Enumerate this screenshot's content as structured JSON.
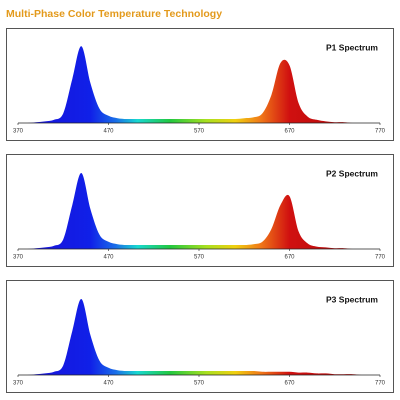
{
  "title": "Multi-Phase Color Temperature Technology",
  "chart_data": [
    {
      "type": "area",
      "title": "P1 Spectrum",
      "x": [
        370,
        380,
        390,
        400,
        410,
        420,
        430,
        440,
        450,
        460,
        470,
        480,
        490,
        500,
        510,
        520,
        530,
        540,
        550,
        560,
        570,
        580,
        590,
        600,
        610,
        620,
        630,
        640,
        650,
        660,
        670,
        680,
        690,
        700,
        710,
        720,
        730,
        740,
        750,
        760,
        770
      ],
      "values": [
        0,
        0,
        1,
        2,
        4,
        12,
        55,
        96,
        50,
        18,
        9,
        6,
        5,
        5,
        5,
        5,
        5,
        5,
        5,
        5,
        5,
        5,
        5,
        5,
        5,
        6,
        7,
        12,
        35,
        75,
        72,
        25,
        8,
        4,
        2,
        1,
        1,
        0,
        0,
        0,
        0
      ],
      "xlim": [
        370,
        770
      ],
      "xticks": [
        370,
        470,
        570,
        670,
        770
      ],
      "ylim": [
        0,
        100
      ]
    },
    {
      "type": "area",
      "title": "P2 Spectrum",
      "x": [
        370,
        380,
        390,
        400,
        410,
        420,
        430,
        440,
        450,
        460,
        470,
        480,
        490,
        500,
        510,
        520,
        530,
        540,
        550,
        560,
        570,
        580,
        590,
        600,
        610,
        620,
        630,
        640,
        650,
        660,
        670,
        680,
        690,
        700,
        710,
        720,
        730,
        740,
        750,
        760,
        770
      ],
      "values": [
        0,
        0,
        1,
        2,
        4,
        12,
        55,
        95,
        50,
        18,
        9,
        6,
        5,
        5,
        5,
        5,
        5,
        5,
        5,
        5,
        5,
        5,
        5,
        5,
        5,
        5,
        6,
        9,
        25,
        55,
        66,
        22,
        7,
        3,
        2,
        1,
        1,
        0,
        0,
        0,
        0
      ],
      "xlim": [
        370,
        770
      ],
      "xticks": [
        370,
        470,
        570,
        670,
        770
      ],
      "ylim": [
        0,
        100
      ]
    },
    {
      "type": "area",
      "title": "P3 Spectrum",
      "x": [
        370,
        380,
        390,
        400,
        410,
        420,
        430,
        440,
        450,
        460,
        470,
        480,
        490,
        500,
        510,
        520,
        530,
        540,
        550,
        560,
        570,
        580,
        590,
        600,
        610,
        620,
        630,
        640,
        650,
        660,
        670,
        680,
        690,
        700,
        710,
        720,
        730,
        740,
        750,
        760,
        770
      ],
      "values": [
        0,
        0,
        1,
        2,
        4,
        12,
        55,
        95,
        50,
        18,
        9,
        6,
        5,
        5,
        5,
        5,
        5,
        5,
        5,
        5,
        5,
        5,
        5,
        5,
        5,
        5,
        5,
        4,
        4,
        4,
        4,
        3,
        3,
        2,
        2,
        1,
        1,
        1,
        0,
        0,
        0
      ],
      "xlim": [
        370,
        770
      ],
      "xticks": [
        370,
        470,
        570,
        670,
        770
      ],
      "ylim": [
        0,
        100
      ]
    }
  ]
}
